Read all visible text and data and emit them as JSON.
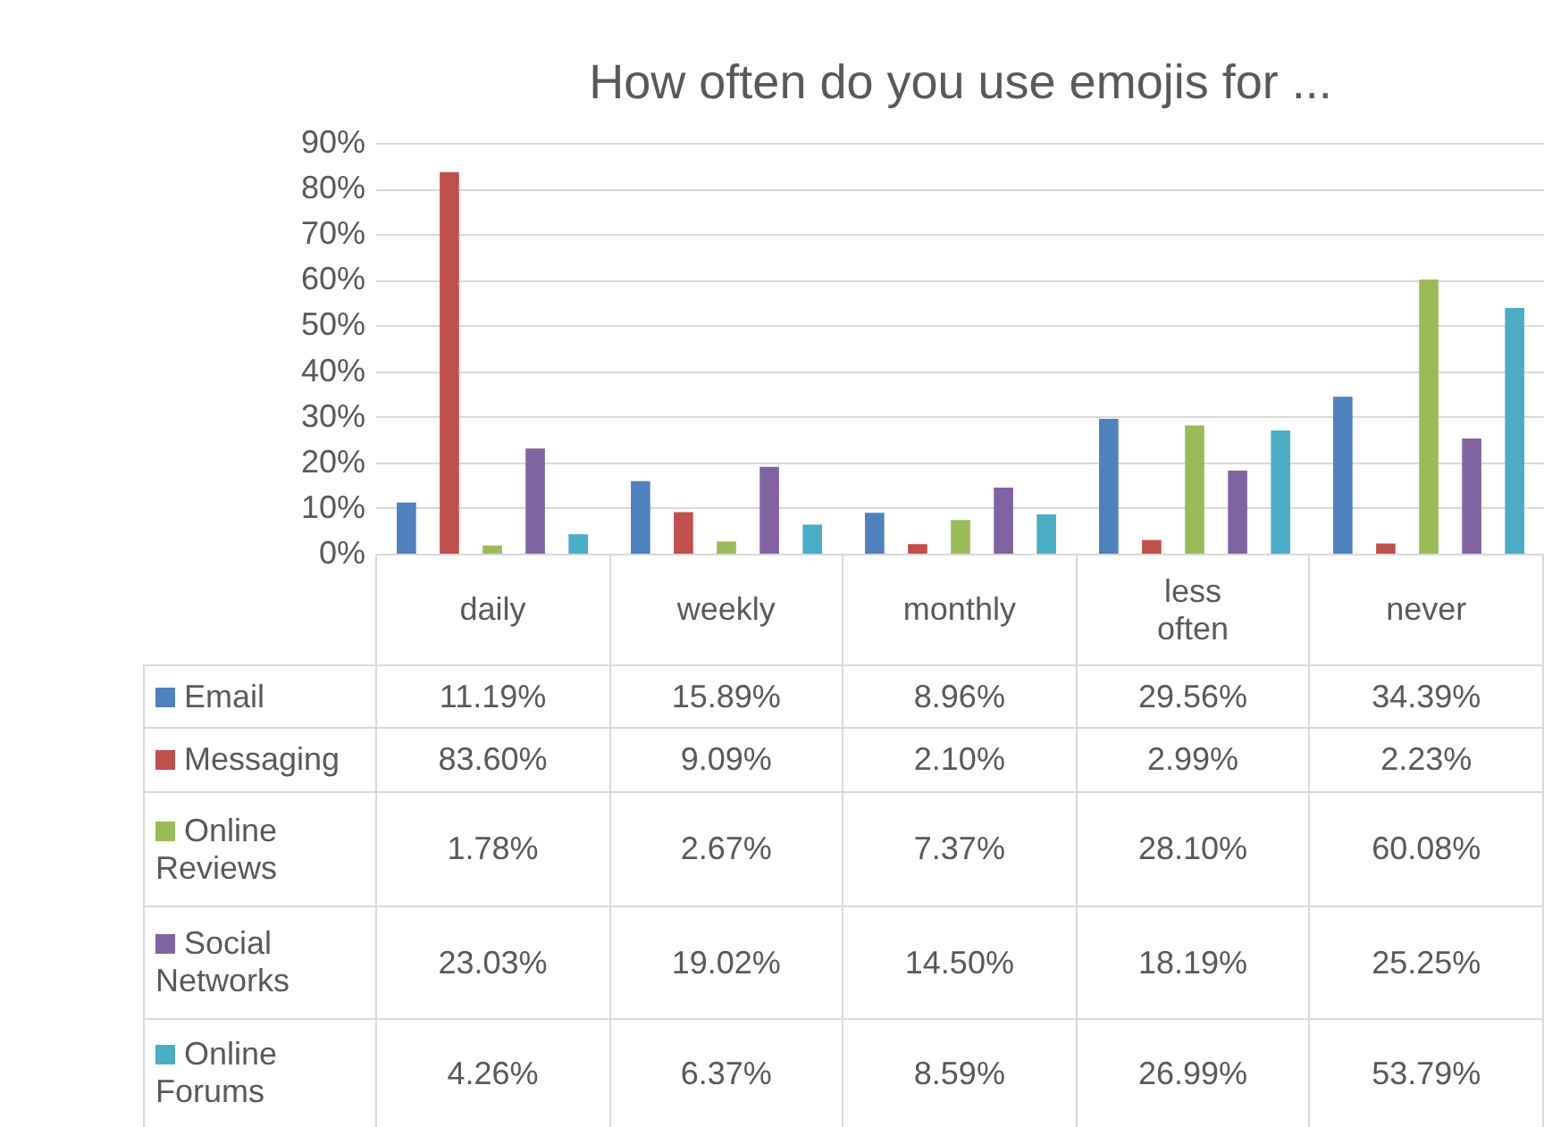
{
  "chart_data": {
    "type": "bar",
    "title": "How often do you use emojis for ...",
    "categories": [
      "daily",
      "weekly",
      "monthly",
      "less often",
      "never"
    ],
    "series": [
      {
        "name": "Email",
        "color": "#4f81bd",
        "values": [
          11.19,
          15.89,
          8.96,
          29.56,
          34.39
        ],
        "value_labels": [
          "11.19%",
          "15.89%",
          "8.96%",
          "29.56%",
          "34.39%"
        ]
      },
      {
        "name": "Messaging",
        "color": "#c0504d",
        "values": [
          83.6,
          9.09,
          2.1,
          2.99,
          2.23
        ],
        "value_labels": [
          "83.60%",
          "9.09%",
          "2.10%",
          "2.99%",
          "2.23%"
        ]
      },
      {
        "name": "Online Reviews",
        "color": "#9bbb59",
        "values": [
          1.78,
          2.67,
          7.37,
          28.1,
          60.08
        ],
        "value_labels": [
          "1.78%",
          "2.67%",
          "7.37%",
          "28.10%",
          "60.08%"
        ]
      },
      {
        "name": "Social Networks",
        "color": "#8064a2",
        "values": [
          23.03,
          19.02,
          14.5,
          18.19,
          25.25
        ],
        "value_labels": [
          "23.03%",
          "19.02%",
          "14.50%",
          "18.19%",
          "25.25%"
        ]
      },
      {
        "name": "Online Forums",
        "color": "#4bacc6",
        "values": [
          4.26,
          6.37,
          8.59,
          26.99,
          53.79
        ],
        "value_labels": [
          "4.26%",
          "6.37%",
          "8.59%",
          "26.99%",
          "53.79%"
        ]
      }
    ],
    "ylim": [
      0,
      90
    ],
    "yticks": [
      {
        "value": 0,
        "label": "0%"
      },
      {
        "value": 10,
        "label": "10%"
      },
      {
        "value": 20,
        "label": "20%"
      },
      {
        "value": 30,
        "label": "30%"
      },
      {
        "value": 40,
        "label": "40%"
      },
      {
        "value": 50,
        "label": "50%"
      },
      {
        "value": 60,
        "label": "60%"
      },
      {
        "value": 70,
        "label": "70%"
      },
      {
        "value": 80,
        "label": "80%"
      },
      {
        "value": 90,
        "label": "90%"
      }
    ],
    "grid": true,
    "legend": "bottom left"
  }
}
